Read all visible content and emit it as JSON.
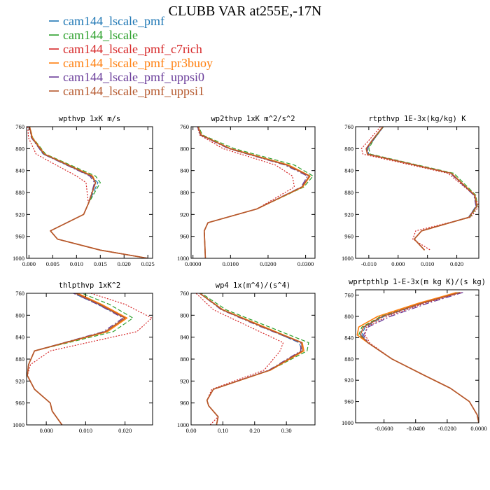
{
  "title": "CLUBB VAR at255E,-17N",
  "legend": [
    {
      "name": "cam144_lscale_pmf",
      "color": "#1f77b4"
    },
    {
      "name": "cam144_lscale",
      "color": "#2ca02c"
    },
    {
      "name": "cam144_lscale_pmf_c7rich",
      "color": "#d62728"
    },
    {
      "name": "cam144_lscale_pmf_pr3buoy",
      "color": "#ff7f0e"
    },
    {
      "name": "cam144_lscale_pmf_uppsi0",
      "color": "#6a3d9a"
    },
    {
      "name": "cam144_lscale_pmf_uppsi1",
      "color": "#b5582d"
    }
  ],
  "chart_data": [
    {
      "type": "line",
      "title": "wpthvp  1xK m/s",
      "ylim": [
        760,
        1000
      ],
      "yticks": [
        760,
        800,
        840,
        880,
        920,
        960,
        1000
      ],
      "ytick_labels": [
        "760",
        "800",
        "840",
        "880",
        "920",
        "960",
        "1000"
      ],
      "xlim": [
        -0.0005,
        0.026
      ],
      "xticks": [
        0,
        0.005,
        0.01,
        0.015,
        0.02,
        0.025
      ],
      "xtick_labels": [
        "0.000",
        "0.005",
        "0.010",
        "0.015",
        "0.020",
        "0.025"
      ],
      "y": [
        755,
        780,
        810,
        850,
        862,
        900,
        920,
        950,
        965,
        985,
        1000
      ],
      "series": [
        {
          "x": [
            0.0,
            0.0006,
            0.003,
            0.013,
            0.0145,
            0.0125,
            0.0115,
            0.0045,
            0.006,
            0.015,
            0.025
          ]
        },
        {
          "x": [
            0.0,
            0.0008,
            0.0035,
            0.014,
            0.015,
            0.0125,
            0.0115,
            0.0045,
            0.006,
            0.015,
            0.025
          ]
        },
        {
          "x": [
            -0.0003,
            -0.0001,
            0.0015,
            0.01,
            0.012,
            0.0125,
            0.0115,
            0.0045,
            0.006,
            0.015,
            0.025
          ]
        },
        {
          "x": [
            0.0,
            0.0007,
            0.0033,
            0.0134,
            0.014,
            0.0125,
            0.0115,
            0.0045,
            0.006,
            0.015,
            0.025
          ]
        },
        {
          "x": [
            0.0,
            0.0005,
            0.003,
            0.0128,
            0.0138,
            0.0125,
            0.0115,
            0.0045,
            0.006,
            0.015,
            0.025
          ]
        },
        {
          "x": [
            0.0,
            0.0006,
            0.0032,
            0.0132,
            0.014,
            0.0125,
            0.0115,
            0.0045,
            0.006,
            0.015,
            0.025
          ]
        }
      ]
    },
    {
      "type": "line",
      "title": "wp2thvp  1xK m^2/s^2",
      "ylim": [
        760,
        1000
      ],
      "yticks": [
        760,
        800,
        840,
        880,
        920,
        960,
        1000
      ],
      "ytick_labels": [
        "760",
        "800",
        "840",
        "880",
        "920",
        "960",
        "1000"
      ],
      "xlim": [
        -0.0005,
        0.0325
      ],
      "xticks": [
        0,
        0.01,
        0.02,
        0.03
      ],
      "xtick_labels": [
        "0.0000",
        "0.0100",
        "0.0200",
        "0.0300"
      ],
      "y": [
        755,
        775,
        800,
        830,
        850,
        870,
        910,
        935,
        950,
        980,
        1000
      ],
      "series": [
        {
          "x": [
            0.001,
            0.002,
            0.01,
            0.025,
            0.031,
            0.029,
            0.017,
            0.004,
            0.003,
            0.0032,
            0.0033
          ]
        },
        {
          "x": [
            0.0012,
            0.0025,
            0.011,
            0.027,
            0.032,
            0.0295,
            0.017,
            0.004,
            0.003,
            0.0032,
            0.0033
          ]
        },
        {
          "x": [
            0.001,
            0.0018,
            0.008,
            0.022,
            0.0265,
            0.027,
            0.017,
            0.004,
            0.003,
            0.0032,
            0.0033
          ]
        },
        {
          "x": [
            0.0011,
            0.0022,
            0.01,
            0.0255,
            0.0312,
            0.0292,
            0.017,
            0.004,
            0.003,
            0.0032,
            0.0033
          ]
        },
        {
          "x": [
            0.001,
            0.0019,
            0.0095,
            0.0245,
            0.0305,
            0.0288,
            0.017,
            0.004,
            0.003,
            0.0032,
            0.0033
          ]
        },
        {
          "x": [
            0.0011,
            0.0021,
            0.0098,
            0.025,
            0.031,
            0.029,
            0.017,
            0.004,
            0.003,
            0.0032,
            0.0033
          ]
        }
      ]
    },
    {
      "type": "line",
      "title": "rtpthvp  1E-3x(kg/kg) K",
      "ylim": [
        760,
        1000
      ],
      "yticks": [
        760,
        800,
        840,
        880,
        920,
        960,
        1000
      ],
      "ytick_labels": [
        "760",
        "800",
        "840",
        "880",
        "920",
        "960",
        "1000"
      ],
      "xlim": [
        -0.0145,
        0.0275
      ],
      "xticks": [
        -0.01,
        0,
        0.01,
        0.02
      ],
      "xtick_labels": [
        "-0.010",
        "0.000",
        "0.010",
        "0.020"
      ],
      "y": [
        760,
        785,
        800,
        810,
        845,
        885,
        905,
        925,
        950,
        965,
        985
      ],
      "series": [
        {
          "x": [
            -0.005,
            -0.0085,
            -0.0105,
            -0.01,
            0.018,
            0.026,
            0.0265,
            0.024,
            0.008,
            0.0055,
            0.009
          ]
        },
        {
          "x": [
            -0.005,
            -0.0085,
            -0.01,
            -0.0095,
            0.019,
            0.0265,
            0.027,
            0.0245,
            0.008,
            0.0055,
            0.009
          ]
        },
        {
          "x": [
            -0.006,
            -0.01,
            -0.0125,
            -0.012,
            0.017,
            0.026,
            0.0275,
            0.0248,
            0.006,
            0.005,
            0.011
          ]
        },
        {
          "x": [
            -0.0052,
            -0.0088,
            -0.0108,
            -0.0104,
            0.0182,
            0.0262,
            0.0268,
            0.0242,
            0.008,
            0.0055,
            0.009
          ]
        },
        {
          "x": [
            -0.0051,
            -0.0087,
            -0.0106,
            -0.0102,
            0.0178,
            0.0258,
            0.0266,
            0.0241,
            0.008,
            0.0055,
            0.009
          ]
        },
        {
          "x": [
            -0.0052,
            -0.0089,
            -0.0109,
            -0.0105,
            0.0181,
            0.0261,
            0.0268,
            0.0242,
            0.008,
            0.0055,
            0.009
          ]
        }
      ]
    },
    {
      "type": "line",
      "title": "thlpthvp  1xK^2",
      "ylim": [
        760,
        1000
      ],
      "yticks": [
        760,
        800,
        840,
        880,
        920,
        960,
        1000
      ],
      "ytick_labels": [
        "760",
        "800",
        "840",
        "880",
        "920",
        "960",
        "1000"
      ],
      "xlim": [
        -0.005,
        0.027
      ],
      "xticks": [
        0,
        0.01,
        0.02
      ],
      "xtick_labels": [
        "0.000",
        "0.010",
        "0.020"
      ],
      "y": [
        757,
        780,
        805,
        830,
        865,
        890,
        910,
        935,
        960,
        975,
        1000
      ],
      "series": [
        {
          "x": [
            0.006,
            0.013,
            0.02,
            0.015,
            -0.003,
            -0.0045,
            -0.0048,
            -0.003,
            0.001,
            0.0015,
            0.004
          ]
        },
        {
          "x": [
            0.008,
            0.016,
            0.022,
            0.017,
            -0.003,
            -0.0045,
            -0.0048,
            -0.003,
            0.001,
            0.0015,
            0.004
          ]
        },
        {
          "x": [
            0.01,
            0.02,
            0.0268,
            0.023,
            0.001,
            -0.004,
            -0.0048,
            -0.003,
            0.001,
            0.0015,
            0.004
          ]
        },
        {
          "x": [
            0.007,
            0.014,
            0.0205,
            0.0155,
            -0.003,
            -0.0045,
            -0.0048,
            -0.003,
            0.001,
            0.0015,
            0.004
          ]
        },
        {
          "x": [
            0.006,
            0.013,
            0.0195,
            0.0145,
            -0.003,
            -0.0045,
            -0.0048,
            -0.003,
            0.001,
            0.0015,
            0.004
          ]
        },
        {
          "x": [
            0.0065,
            0.0135,
            0.02,
            0.015,
            -0.003,
            -0.0045,
            -0.0048,
            -0.003,
            0.001,
            0.0015,
            0.004
          ]
        }
      ]
    },
    {
      "type": "line",
      "title": "wp4  1x(m^4)/(s^4)",
      "ylim": [
        760,
        1000
      ],
      "yticks": [
        760,
        800,
        840,
        880,
        920,
        960,
        1000
      ],
      "ytick_labels": [
        "760",
        "800",
        "840",
        "880",
        "920",
        "960",
        "1000"
      ],
      "xlim": [
        0,
        0.39
      ],
      "xticks": [
        0,
        0.1,
        0.2,
        0.3
      ],
      "xtick_labels": [
        "0.00",
        "0.10",
        "0.20",
        "0.30"
      ],
      "y": [
        757,
        790,
        820,
        850,
        865,
        900,
        935,
        955,
        965,
        985,
        1000
      ],
      "series": [
        {
          "x": [
            0.02,
            0.1,
            0.22,
            0.34,
            0.35,
            0.25,
            0.07,
            0.05,
            0.055,
            0.085,
            0.08
          ]
        },
        {
          "x": [
            0.025,
            0.11,
            0.24,
            0.37,
            0.365,
            0.25,
            0.07,
            0.05,
            0.055,
            0.085,
            0.08
          ]
        },
        {
          "x": [
            0.01,
            0.07,
            0.18,
            0.29,
            0.28,
            0.23,
            0.065,
            0.05,
            0.055,
            0.085,
            0.06
          ]
        },
        {
          "x": [
            0.02,
            0.1,
            0.225,
            0.35,
            0.355,
            0.25,
            0.07,
            0.05,
            0.055,
            0.085,
            0.08
          ]
        },
        {
          "x": [
            0.02,
            0.095,
            0.215,
            0.345,
            0.345,
            0.245,
            0.07,
            0.05,
            0.055,
            0.085,
            0.08
          ]
        },
        {
          "x": [
            0.02,
            0.098,
            0.22,
            0.348,
            0.35,
            0.248,
            0.07,
            0.05,
            0.055,
            0.085,
            0.08
          ]
        }
      ]
    },
    {
      "type": "line",
      "title": "wprtpthlp  1-E-3x(m kg K)/(s kg)",
      "ylim": [
        750,
        1000
      ],
      "yticks": [
        760,
        800,
        840,
        880,
        920,
        960,
        1000
      ],
      "ytick_labels": [
        "760",
        "800",
        "840",
        "880",
        "920",
        "960",
        "1000"
      ],
      "xlim": [
        -0.078,
        0
      ],
      "xticks": [
        -0.06,
        -0.04,
        -0.02,
        0
      ],
      "xtick_labels": [
        "-0.0600",
        "-0.0400",
        "-0.0200",
        "0.0000"
      ],
      "y": [
        755,
        775,
        800,
        820,
        835,
        850,
        880,
        910,
        935,
        960,
        985,
        1000
      ],
      "series": [
        {
          "x": [
            -0.012,
            -0.035,
            -0.06,
            -0.072,
            -0.074,
            -0.07,
            -0.055,
            -0.035,
            -0.018,
            -0.006,
            -0.001,
            0.0
          ]
        },
        {
          "x": [
            -0.013,
            -0.037,
            -0.062,
            -0.074,
            -0.076,
            -0.07,
            -0.055,
            -0.035,
            -0.018,
            -0.006,
            -0.001,
            0.0
          ]
        },
        {
          "x": [
            -0.011,
            -0.034,
            -0.058,
            -0.071,
            -0.072,
            -0.069,
            -0.055,
            -0.035,
            -0.018,
            -0.006,
            -0.001,
            0.0
          ]
        },
        {
          "x": [
            -0.014,
            -0.038,
            -0.064,
            -0.076,
            -0.077,
            -0.07,
            -0.055,
            -0.035,
            -0.018,
            -0.006,
            -0.001,
            0.0
          ]
        },
        {
          "x": [
            -0.01,
            -0.032,
            -0.056,
            -0.07,
            -0.073,
            -0.07,
            -0.055,
            -0.035,
            -0.018,
            -0.006,
            -0.001,
            0.0
          ]
        },
        {
          "x": [
            -0.012,
            -0.036,
            -0.061,
            -0.073,
            -0.075,
            -0.07,
            -0.055,
            -0.035,
            -0.018,
            -0.006,
            -0.001,
            0.0
          ]
        }
      ]
    }
  ]
}
